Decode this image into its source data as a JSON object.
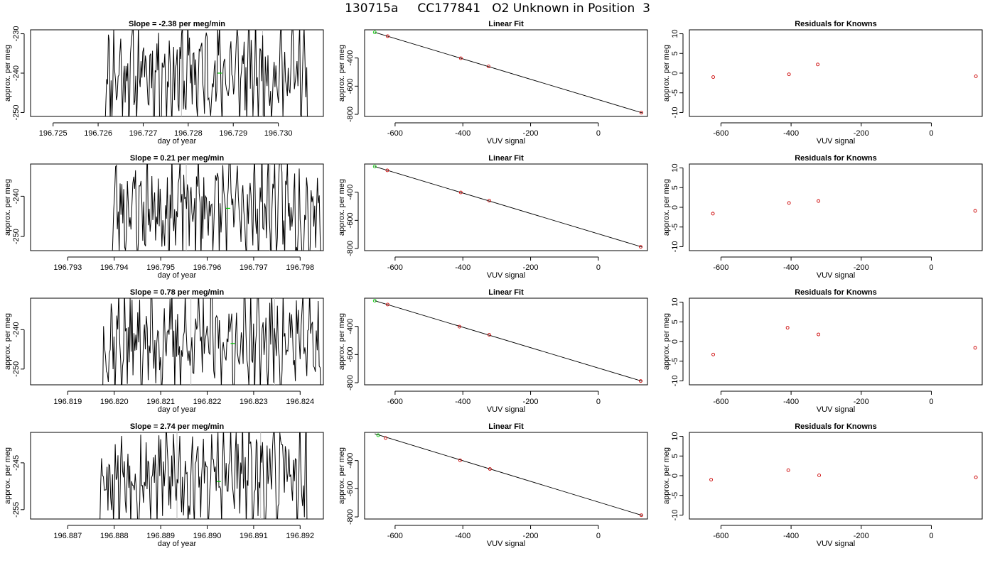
{
  "title": "130715a     CC177841   O2 Unknown in Position  3",
  "colors": {
    "line": "#000000",
    "known_point": "#cc0000",
    "unknown_point": "#00cc00",
    "guide": "#bbbbbb",
    "box": "#000000"
  },
  "chart_data": [
    {
      "row": 1,
      "time_series": {
        "type": "line",
        "title": "Slope =  -2.38  per meg/min",
        "xlabel": "day of year",
        "ylabel": "approx. per meg",
        "xlim": [
          196.7245,
          196.731
        ],
        "ylim": [
          -251,
          -229
        ],
        "xticks": [
          196.725,
          196.726,
          196.727,
          196.728,
          196.729,
          196.73
        ],
        "xtick_labels": [
          "196.725",
          "196.726",
          "196.727",
          "196.728",
          "196.729",
          "196.730"
        ],
        "yticks": [
          -250,
          -240,
          -230
        ],
        "ytick_labels": [
          "-250",
          "-240",
          "-230"
        ],
        "x_start": 196.72615,
        "x_end": 196.73065,
        "vlines": [
          196.72785,
          196.72965
        ],
        "unknown_marker": [
          196.7287,
          -240
        ],
        "seed": 11
      },
      "linear_fit": {
        "type": "scatter",
        "title": "Linear Fit",
        "xlabel": "VUV signal",
        "ylabel": "approx. per meg",
        "xlim": [
          -690,
          145
        ],
        "ylim": [
          -815,
          -200
        ],
        "xticks": [
          -600,
          -400,
          -200,
          0
        ],
        "xtick_labels": [
          "-600",
          "-400",
          "-200",
          "0"
        ],
        "yticks": [
          -800,
          -600,
          -400
        ],
        "ytick_labels": [
          "-800",
          "-600",
          "-400"
        ],
        "fit_line": [
          [
            -660,
            -218
          ],
          [
            130,
            -790
          ]
        ],
        "known_points": [
          [
            -622,
            -245
          ],
          [
            -406,
            -402
          ],
          [
            -324,
            -460
          ],
          [
            127,
            -788
          ]
        ],
        "unknown_points": [
          [
            -660,
            -218
          ]
        ]
      },
      "residuals": {
        "type": "scatter",
        "title": "Residuals for Knowns",
        "xlabel": "VUV signal",
        "ylabel": "approx. per meg",
        "xlim": [
          -690,
          145
        ],
        "ylim": [
          -11,
          11
        ],
        "xticks": [
          -600,
          -400,
          -200,
          0
        ],
        "xtick_labels": [
          "-600",
          "-400",
          "-200",
          "0"
        ],
        "yticks": [
          -10,
          -5,
          0,
          5,
          10
        ],
        "ytick_labels": [
          "-10",
          "-5",
          "0",
          "5",
          "10"
        ],
        "points": [
          [
            -622,
            -1.0
          ],
          [
            -406,
            -0.3
          ],
          [
            -324,
            2.2
          ],
          [
            127,
            -0.8
          ]
        ]
      }
    },
    {
      "row": 2,
      "time_series": {
        "type": "line",
        "title": "Slope =  0.21  per meg/min",
        "xlabel": "day of year",
        "ylabel": "approx. per meg",
        "xlim": [
          196.7922,
          196.7985
        ],
        "ylim": [
          -253.5,
          -232
        ],
        "xticks": [
          196.793,
          196.794,
          196.795,
          196.796,
          196.797,
          196.798
        ],
        "xtick_labels": [
          "196.793",
          "196.794",
          "196.795",
          "196.796",
          "196.797",
          "196.798"
        ],
        "yticks": [
          -250,
          -240
        ],
        "ytick_labels": [
          "-250",
          "-240"
        ],
        "x_start": 196.79395,
        "x_end": 196.79845,
        "vlines": [
          196.79555,
          196.79735
        ],
        "unknown_marker": [
          196.79645,
          -243
        ],
        "seed": 23
      },
      "linear_fit": {
        "type": "scatter",
        "title": "Linear Fit",
        "xlabel": "VUV signal",
        "ylabel": "approx. per meg",
        "xlim": [
          -690,
          145
        ],
        "ylim": [
          -815,
          -200
        ],
        "xticks": [
          -600,
          -400,
          -200,
          0
        ],
        "xtick_labels": [
          "-600",
          "-400",
          "-200",
          "0"
        ],
        "yticks": [
          -800,
          -600,
          -400
        ],
        "ytick_labels": [
          "-800",
          "-600",
          "-400"
        ],
        "fit_line": [
          [
            -660,
            -218
          ],
          [
            130,
            -790
          ]
        ],
        "known_points": [
          [
            -623,
            -245
          ],
          [
            -406,
            -402
          ],
          [
            -322,
            -460
          ],
          [
            125,
            -788
          ]
        ],
        "unknown_points": [
          [
            -660,
            -218
          ]
        ]
      },
      "residuals": {
        "type": "scatter",
        "title": "Residuals for Knowns",
        "xlabel": "VUV signal",
        "ylabel": "approx. per meg",
        "xlim": [
          -690,
          145
        ],
        "ylim": [
          -11,
          11
        ],
        "xticks": [
          -600,
          -400,
          -200,
          0
        ],
        "xtick_labels": [
          "-600",
          "-400",
          "-200",
          "0"
        ],
        "yticks": [
          -10,
          -5,
          0,
          5,
          10
        ],
        "ytick_labels": [
          "-10",
          "-5",
          "0",
          "5",
          "10"
        ],
        "points": [
          [
            -623,
            -1.6
          ],
          [
            -406,
            1.1
          ],
          [
            -322,
            1.6
          ],
          [
            125,
            -0.9
          ]
        ]
      }
    },
    {
      "row": 3,
      "time_series": {
        "type": "line",
        "title": "Slope =  0.78  per meg/min",
        "xlabel": "day of year",
        "ylabel": "approx. per meg",
        "xlim": [
          196.8182,
          196.8245
        ],
        "ylim": [
          -254,
          -232
        ],
        "xticks": [
          196.819,
          196.82,
          196.821,
          196.822,
          196.823,
          196.824
        ],
        "xtick_labels": [
          "196.819",
          "196.820",
          "196.821",
          "196.822",
          "196.823",
          "196.824"
        ],
        "yticks": [
          -250,
          -240
        ],
        "ytick_labels": [
          "-250",
          "-240"
        ],
        "x_start": 196.81975,
        "x_end": 196.82445,
        "vlines": [
          196.82165,
          196.82345
        ],
        "unknown_marker": [
          196.82255,
          -243.5
        ],
        "seed": 37
      },
      "linear_fit": {
        "type": "scatter",
        "title": "Linear Fit",
        "xlabel": "VUV signal",
        "ylabel": "approx. per meg",
        "xlim": [
          -690,
          145
        ],
        "ylim": [
          -815,
          -200
        ],
        "xticks": [
          -600,
          -400,
          -200,
          0
        ],
        "xtick_labels": [
          "-600",
          "-400",
          "-200",
          "0"
        ],
        "yticks": [
          -800,
          -600,
          -400
        ],
        "ytick_labels": [
          "-800",
          "-600",
          "-400"
        ],
        "fit_line": [
          [
            -660,
            -218
          ],
          [
            130,
            -790
          ]
        ],
        "known_points": [
          [
            -622,
            -245
          ],
          [
            -410,
            -402
          ],
          [
            -322,
            -460
          ],
          [
            125,
            -788
          ]
        ],
        "unknown_points": [
          [
            -660,
            -218
          ]
        ]
      },
      "residuals": {
        "type": "scatter",
        "title": "Residuals for Knowns",
        "xlabel": "VUV signal",
        "ylabel": "approx. per meg",
        "xlim": [
          -690,
          145
        ],
        "ylim": [
          -11,
          11
        ],
        "xticks": [
          -600,
          -400,
          -200,
          0
        ],
        "xtick_labels": [
          "-600",
          "-400",
          "-200",
          "0"
        ],
        "yticks": [
          -10,
          -5,
          0,
          5,
          10
        ],
        "ytick_labels": [
          "-10",
          "-5",
          "0",
          "5",
          "10"
        ],
        "points": [
          [
            -622,
            -3.3
          ],
          [
            -410,
            3.5
          ],
          [
            -322,
            1.8
          ],
          [
            125,
            -1.6
          ]
        ]
      }
    },
    {
      "row": 4,
      "time_series": {
        "type": "line",
        "title": "Slope =  2.74  per meg/min",
        "xlabel": "day of year",
        "ylabel": "approx. per meg",
        "xlim": [
          196.8862,
          196.8925
        ],
        "ylim": [
          -257,
          -238.5
        ],
        "xticks": [
          196.887,
          196.888,
          196.889,
          196.89,
          196.891,
          196.892
        ],
        "xtick_labels": [
          "196.887",
          "196.888",
          "196.889",
          "196.890",
          "196.891",
          "196.892"
        ],
        "yticks": [
          -255,
          -245
        ],
        "ytick_labels": [
          "-255",
          "-245"
        ],
        "x_start": 196.88765,
        "x_end": 196.89215,
        "vlines": [
          196.88935,
          196.89115
        ],
        "unknown_marker": [
          196.89025,
          -249
        ],
        "seed": 53
      },
      "linear_fit": {
        "type": "scatter",
        "title": "Linear Fit",
        "xlabel": "VUV signal",
        "ylabel": "approx. per meg",
        "xlim": [
          -690,
          145
        ],
        "ylim": [
          -815,
          -200
        ],
        "xticks": [
          -600,
          -400,
          -200,
          0
        ],
        "xtick_labels": [
          "-600",
          "-400",
          "-200",
          "0"
        ],
        "yticks": [
          -800,
          -600,
          -400
        ],
        "ytick_labels": [
          "-800",
          "-600",
          "-400"
        ],
        "fit_line": [
          [
            -660,
            -210
          ],
          [
            130,
            -790
          ]
        ],
        "known_points": [
          [
            -628,
            -240
          ],
          [
            -408,
            -398
          ],
          [
            -320,
            -460
          ],
          [
            127,
            -788
          ]
        ],
        "unknown_points": [
          [
            -650,
            -220
          ]
        ]
      },
      "residuals": {
        "type": "scatter",
        "title": "Residuals for Knowns",
        "xlabel": "VUV signal",
        "ylabel": "approx. per meg",
        "xlim": [
          -690,
          145
        ],
        "ylim": [
          -11,
          11
        ],
        "xticks": [
          -600,
          -400,
          -200,
          0
        ],
        "xtick_labels": [
          "-600",
          "-400",
          "-200",
          "0"
        ],
        "yticks": [
          -10,
          -5,
          0,
          5,
          10
        ],
        "ytick_labels": [
          "-10",
          "-5",
          "0",
          "5",
          "10"
        ],
        "points": [
          [
            -628,
            -1.0
          ],
          [
            -408,
            1.4
          ],
          [
            -320,
            0.1
          ],
          [
            127,
            -0.4
          ]
        ]
      }
    }
  ]
}
